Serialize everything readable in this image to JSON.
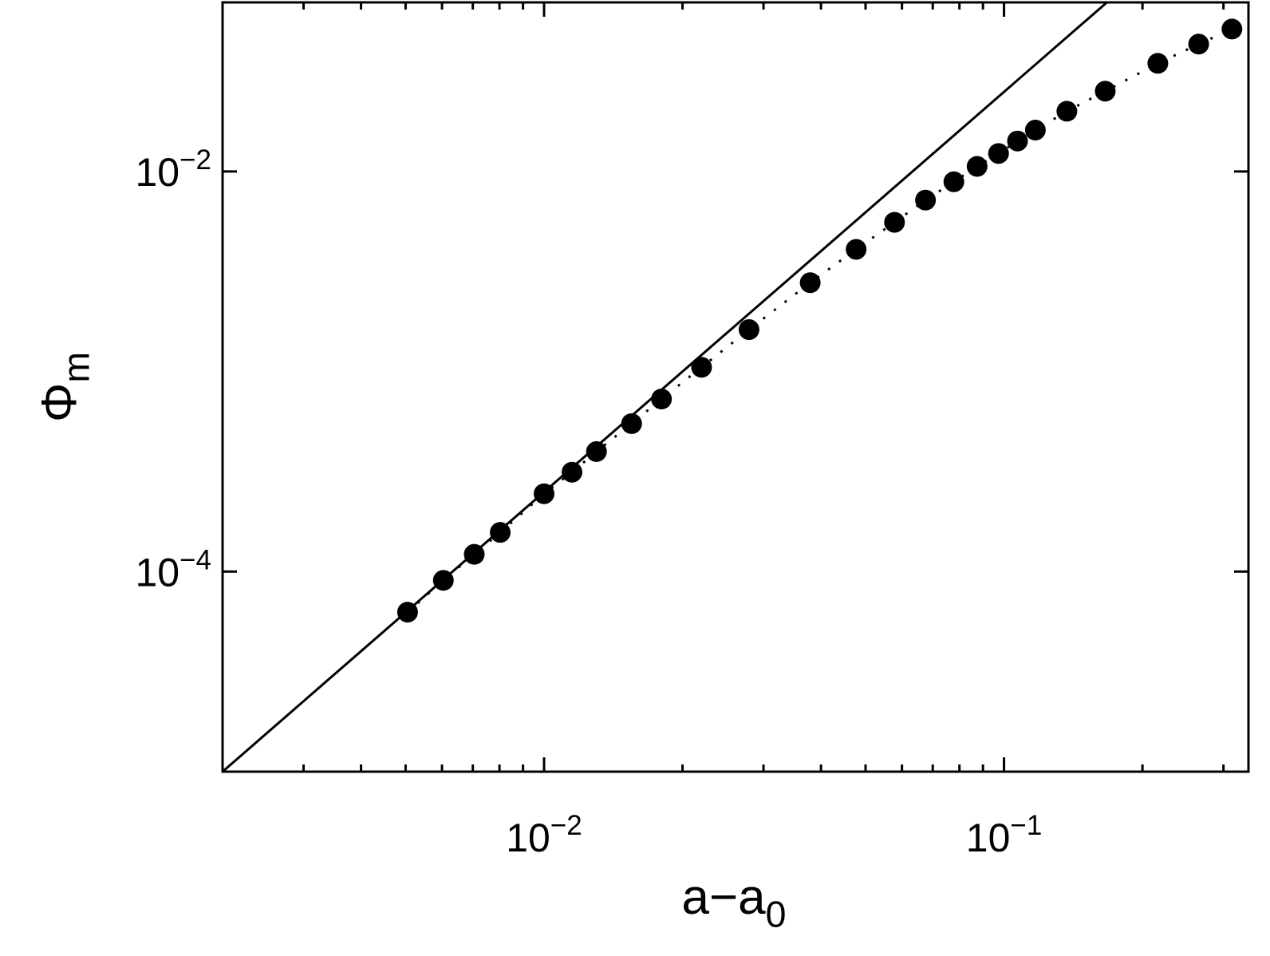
{
  "chart_data": {
    "type": "scatter",
    "xlabel": "a−a0",
    "ylabel": "Φm",
    "xscale": "log",
    "yscale": "log",
    "xlim": [
      0.002,
      0.34
    ],
    "ylim": [
      1e-05,
      0.07
    ],
    "xticks": [
      {
        "value": 0.01,
        "label": "10−2"
      },
      {
        "value": 0.1,
        "label": "10−1"
      }
    ],
    "xminorticks": [
      0.003,
      0.004,
      0.005,
      0.006,
      0.007,
      0.008,
      0.009,
      0.02,
      0.03,
      0.04,
      0.05,
      0.06,
      0.07,
      0.08,
      0.09,
      0.2,
      0.3
    ],
    "yticks": [
      {
        "value": 0.0001,
        "label": "10−4"
      },
      {
        "value": 0.01,
        "label": "10−2"
      }
    ],
    "series": [
      {
        "style": "dotted-markers",
        "color": "#000000",
        "x": [
          0.00505,
          0.00604,
          0.00705,
          0.00803,
          0.01,
          0.0115,
          0.013,
          0.0155,
          0.018,
          0.022,
          0.0279,
          0.0379,
          0.0477,
          0.0578,
          0.0675,
          0.0778,
          0.0874,
          0.0973,
          0.107,
          0.117,
          0.137,
          0.166,
          0.216,
          0.265,
          0.313
        ],
        "values": [
          6.27e-05,
          9.04e-05,
          0.000122,
          0.000157,
          0.000245,
          0.000314,
          0.000398,
          0.000549,
          0.000729,
          0.00105,
          0.00162,
          0.00278,
          0.00408,
          0.00557,
          0.00719,
          0.00888,
          0.0106,
          0.0123,
          0.0142,
          0.0161,
          0.02,
          0.0252,
          0.0347,
          0.0433,
          0.0515
        ]
      },
      {
        "style": "solid",
        "color": "#000000",
        "x": [
          0.002,
          0.167
        ],
        "values": [
          1e-05,
          0.0697
        ]
      }
    ]
  }
}
